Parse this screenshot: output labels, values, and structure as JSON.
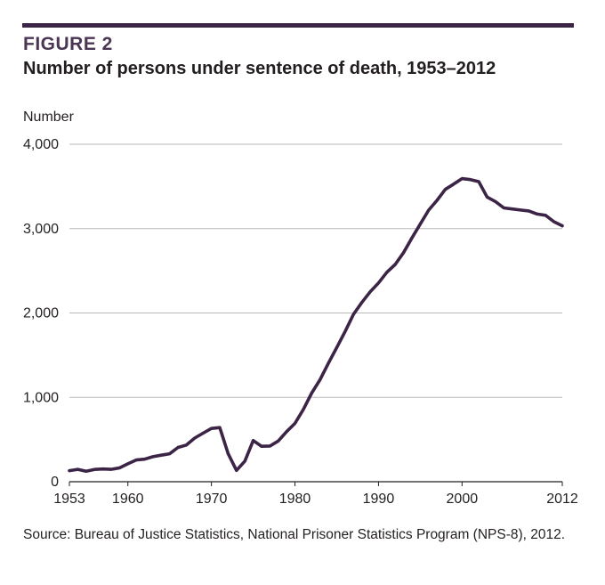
{
  "figure": {
    "label": "FIGURE 2",
    "title": "Number of persons under sentence of death, 1953–2012",
    "source": "Source: Bureau of Justice Statistics, National Prisoner Statistics Program (NPS-8), 2012."
  },
  "colors": {
    "line": "#3b2445",
    "grid": "#b9b9b9",
    "accent": "#3b2445"
  },
  "chart_data": {
    "type": "line",
    "title": "Number of persons under sentence of death, 1953–2012",
    "xlabel": "",
    "ylabel": "Number",
    "xlim": [
      1953,
      2012
    ],
    "ylim": [
      0,
      4000
    ],
    "grid": true,
    "x_ticks": [
      1953,
      1960,
      1970,
      1980,
      1990,
      2000,
      2012
    ],
    "x_tick_labels": [
      "1953",
      "1960",
      "1970",
      "1980",
      "1990",
      "2000",
      "2012"
    ],
    "y_ticks": [
      0,
      1000,
      2000,
      3000,
      4000
    ],
    "y_tick_labels": [
      "0",
      "1,000",
      "2,000",
      "3,000",
      "4,000"
    ],
    "series": [
      {
        "x": [
          1953,
          1954,
          1955,
          1956,
          1957,
          1958,
          1959,
          1960,
          1961,
          1962,
          1963,
          1964,
          1965,
          1966,
          1967,
          1968,
          1969,
          1970,
          1971,
          1972,
          1973,
          1974,
          1975,
          1976,
          1977,
          1978,
          1979,
          1980,
          1981,
          1982,
          1983,
          1984,
          1985,
          1986,
          1987,
          1988,
          1989,
          1990,
          1991,
          1992,
          1993,
          1994,
          1995,
          1996,
          1997,
          1998,
          1999,
          2000,
          2001,
          2002,
          2003,
          2004,
          2005,
          2006,
          2007,
          2008,
          2009,
          2010,
          2011,
          2012
        ],
        "values": [
          131,
          147,
          125,
          146,
          151,
          147,
          164,
          212,
          257,
          267,
          297,
          315,
          331,
          406,
          435,
          517,
          575,
          631,
          642,
          334,
          134,
          244,
          488,
          420,
          423,
          482,
          593,
          691,
          856,
          1050,
          1209,
          1405,
          1591,
          1781,
          1984,
          2124,
          2250,
          2356,
          2482,
          2575,
          2716,
          2890,
          3054,
          3219,
          3335,
          3465,
          3527,
          3593,
          3581,
          3557,
          3374,
          3320,
          3245,
          3233,
          3220,
          3210,
          3173,
          3158,
          3082,
          3033
        ]
      }
    ]
  }
}
